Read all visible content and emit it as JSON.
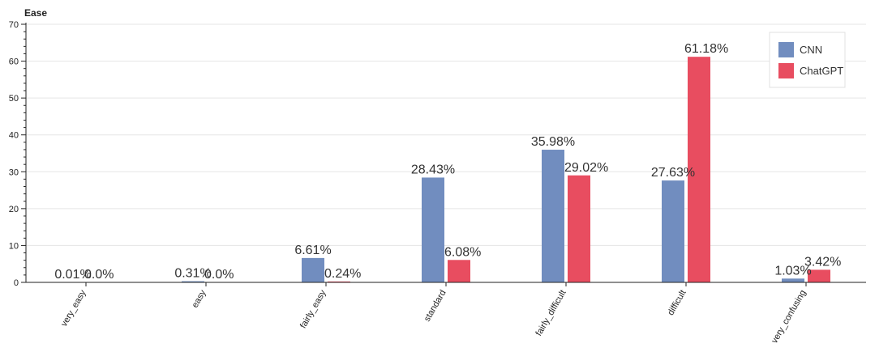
{
  "chart_data": {
    "type": "bar",
    "title": "Ease",
    "xlabel": "",
    "ylabel": "",
    "ylim": [
      0,
      70
    ],
    "yticks": [
      0,
      10,
      20,
      30,
      40,
      50,
      60,
      70
    ],
    "grid": true,
    "legend_position": "top-right",
    "categories": [
      "very_easy",
      "easy",
      "fairly_easy",
      "standard",
      "fairly_difficult",
      "difficult",
      "very_confusing"
    ],
    "series": [
      {
        "name": "CNN",
        "color": "#718dbf",
        "values": [
          0.01,
          0.31,
          6.61,
          28.43,
          35.98,
          27.63,
          1.03
        ],
        "labels": [
          "0.01%",
          "0.31%",
          "6.61%",
          "28.43%",
          "35.98%",
          "27.63%",
          "1.03%"
        ]
      },
      {
        "name": "ChatGPT",
        "color": "#e84d60",
        "values": [
          0.0,
          0.0,
          0.24,
          6.08,
          29.02,
          61.18,
          3.42
        ],
        "labels": [
          "0.0%",
          "0.0%",
          "0.24%",
          "6.08%",
          "29.02%",
          "61.18%",
          "3.42%"
        ]
      }
    ]
  }
}
